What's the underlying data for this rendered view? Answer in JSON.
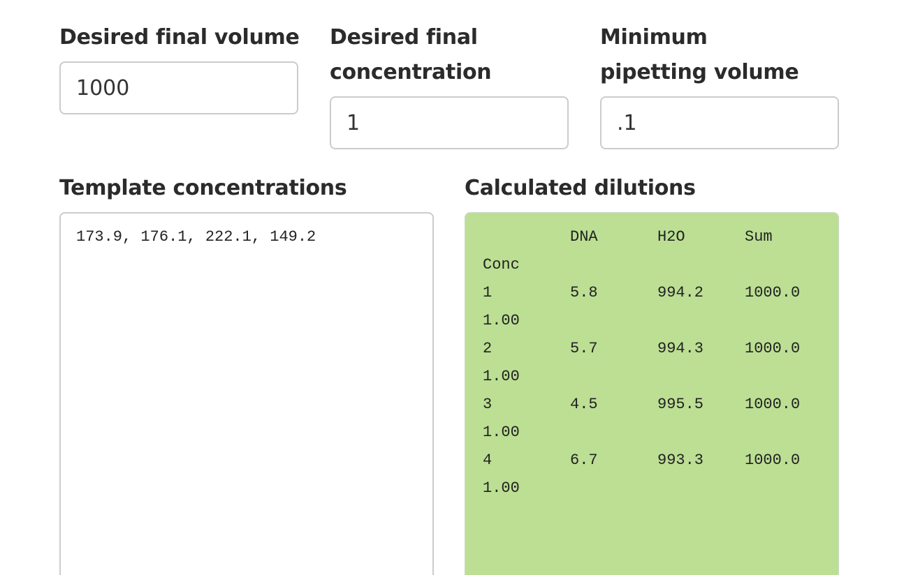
{
  "inputs": {
    "final_volume": {
      "label": "Desired final volume",
      "value": "1000"
    },
    "final_concentration": {
      "label": "Desired final concentration",
      "value": "1"
    },
    "min_pipetting": {
      "label": "Minimum pipetting volume",
      "value": ".1"
    }
  },
  "template": {
    "label": "Template concentrations",
    "value": "173.9, 176.1, 222.1, 149.2"
  },
  "results": {
    "label": "Calculated dilutions",
    "headers": [
      "",
      "DNA",
      "H2O",
      "Sum"
    ],
    "header_wrap": "Conc",
    "rows": [
      {
        "id": "1",
        "dna": "5.8",
        "h2o": "994.2",
        "sum": "1000.0",
        "conc": "1.00"
      },
      {
        "id": "2",
        "dna": "5.7",
        "h2o": "994.3",
        "sum": "1000.0",
        "conc": "1.00"
      },
      {
        "id": "3",
        "dna": "4.5",
        "h2o": "995.5",
        "sum": "1000.0",
        "conc": "1.00"
      },
      {
        "id": "4",
        "dna": "6.7",
        "h2o": "993.3",
        "sum": "1000.0",
        "conc": "1.00"
      }
    ],
    "background_color": "#bcdf94"
  }
}
